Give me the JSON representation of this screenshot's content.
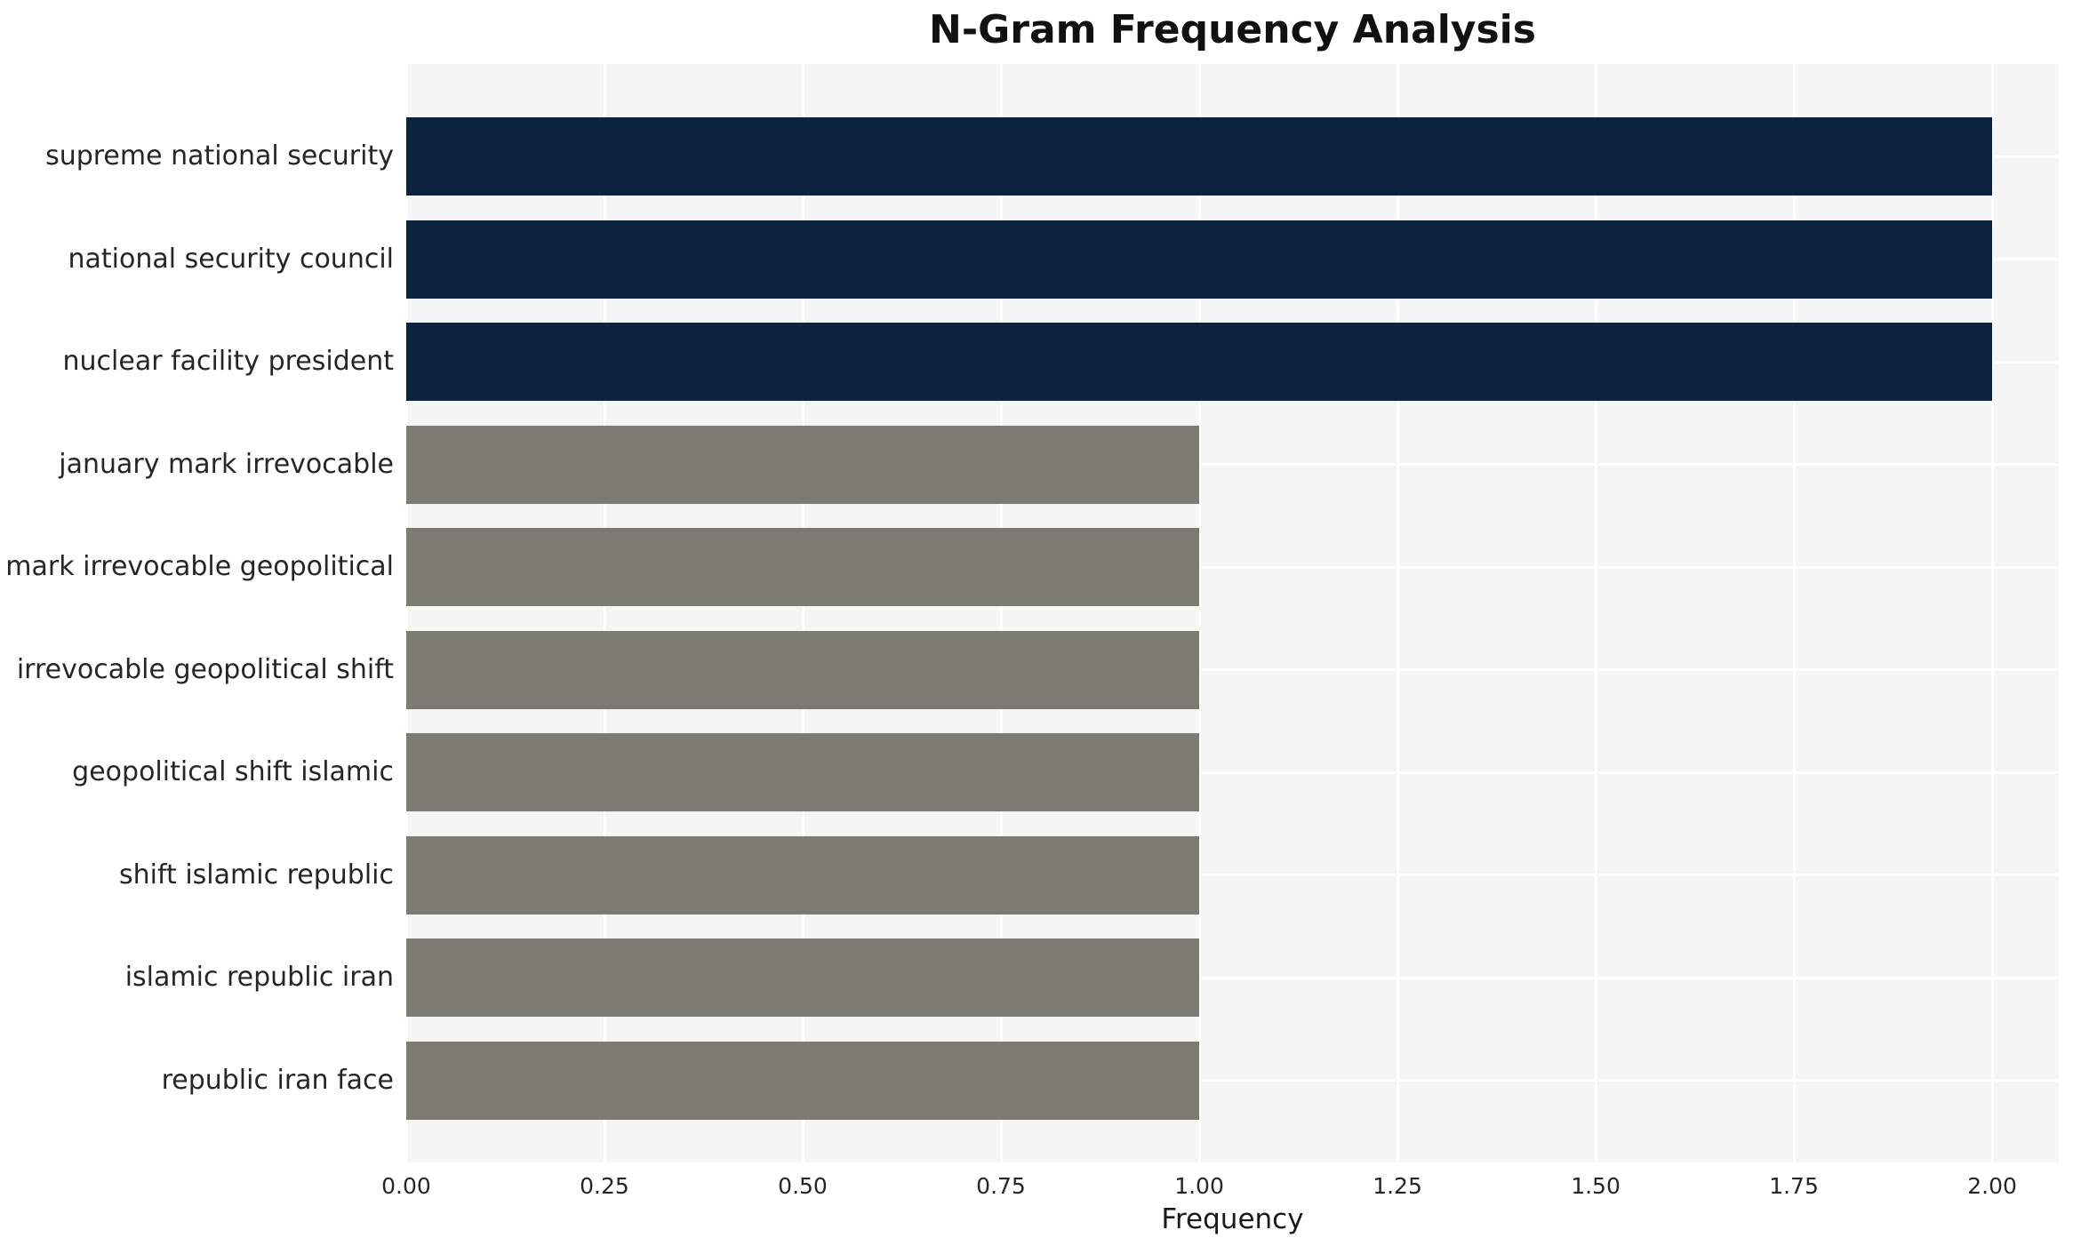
{
  "chart_data": {
    "type": "bar",
    "orientation": "horizontal",
    "title": "N-Gram Frequency Analysis",
    "xlabel": "Frequency",
    "ylabel": "",
    "categories": [
      "supreme national security",
      "national security council",
      "nuclear facility president",
      "january mark irrevocable",
      "mark irrevocable geopolitical",
      "irrevocable geopolitical shift",
      "geopolitical shift islamic",
      "shift islamic republic",
      "islamic republic iran",
      "republic iran face"
    ],
    "values": [
      2,
      2,
      2,
      1,
      1,
      1,
      1,
      1,
      1,
      1
    ],
    "bar_colors": [
      "#0c2340",
      "#0c2340",
      "#0c2340",
      "#7b7b73",
      "#7b7b73",
      "#7b7b73",
      "#7b7b73",
      "#7b7b73",
      "#7b7b73",
      "#7b7b73"
    ],
    "xlim": [
      0,
      2.084
    ],
    "xticks": [
      0,
      0.25,
      0.5,
      0.75,
      1.0,
      1.25,
      1.5,
      1.75,
      2.0
    ],
    "xtick_labels": [
      "0.00",
      "0.25",
      "0.50",
      "0.75",
      "1.00",
      "1.25",
      "1.50",
      "1.75",
      "2.00"
    ],
    "grid": true,
    "legend": "none",
    "colors": {
      "highlight_bar": "#0c2340",
      "default_bar": "#7b7b73",
      "plot_background": "#f5f5f6",
      "gridline": "#ffffff",
      "figure_background": "#ffffff",
      "text": "#262626"
    }
  }
}
